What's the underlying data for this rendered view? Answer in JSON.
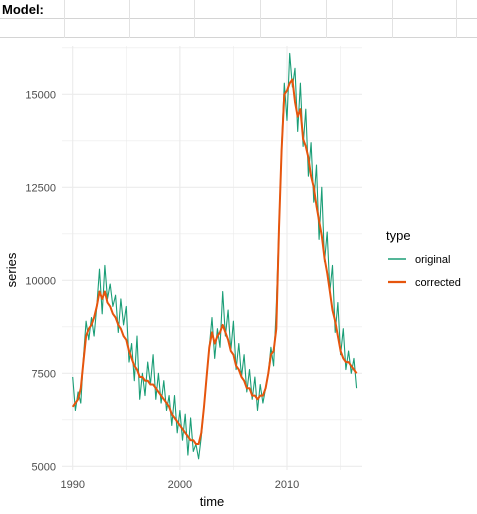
{
  "sheet": {
    "model_label": "Model:"
  },
  "colors": {
    "original": "#1b9e77",
    "corrected": "#e6550d",
    "grid": "#ebebeb"
  },
  "chart_data": {
    "type": "line",
    "title": "",
    "xlabel": "time",
    "ylabel": "series",
    "xlim": [
      1989,
      2017
    ],
    "ylim": [
      4900,
      16300
    ],
    "xticks": [
      1990,
      2000,
      2010
    ],
    "yticks": [
      5000,
      7500,
      10000,
      12500,
      15000
    ],
    "grid": true,
    "legend": {
      "title": "type",
      "placement": "right"
    },
    "x_start": 1990.0,
    "x_step": 0.25,
    "series": [
      {
        "name": "original",
        "values": [
          7400,
          6500,
          7000,
          6700,
          7900,
          8900,
          8400,
          9000,
          8500,
          9300,
          10300,
          9100,
          10400,
          9500,
          9900,
          9300,
          9600,
          8600,
          9500,
          8800,
          9300,
          7800,
          8300,
          7300,
          8500,
          6800,
          7500,
          6900,
          7800,
          7200,
          8000,
          6800,
          7500,
          6700,
          7300,
          6500,
          6900,
          6100,
          6900,
          5900,
          6500,
          5700,
          6400,
          5300,
          6300,
          5400,
          5600,
          5200,
          5800,
          6600,
          7400,
          8200,
          9000,
          7900,
          8700,
          8200,
          9700,
          8500,
          9200,
          8100,
          8900,
          7600,
          8300,
          7400,
          8000,
          7000,
          7600,
          6800,
          7400,
          6500,
          7200,
          6700,
          7100,
          7500,
          8200,
          7700,
          9300,
          11500,
          13600,
          15300,
          14300,
          16100,
          15200,
          15700,
          14000,
          15300,
          13600,
          14600,
          12800,
          13700,
          12100,
          13100,
          11100,
          12500,
          10500,
          11300,
          9700,
          10400,
          8600,
          9400,
          8000,
          8700,
          7600,
          8100,
          7500,
          7900,
          7100
        ]
      },
      {
        "name": "corrected",
        "values": [
          6600,
          6700,
          6800,
          7100,
          7800,
          8500,
          8700,
          8800,
          9000,
          9300,
          9700,
          9500,
          9700,
          9400,
          9300,
          9100,
          9000,
          8800,
          8700,
          8500,
          8400,
          8100,
          7900,
          7700,
          7600,
          7400,
          7400,
          7300,
          7300,
          7200,
          7200,
          7100,
          7000,
          6900,
          6800,
          6700,
          6600,
          6400,
          6300,
          6200,
          6100,
          6000,
          5900,
          5800,
          5700,
          5700,
          5600,
          5600,
          5900,
          6600,
          7400,
          8200,
          8600,
          8300,
          8500,
          8600,
          8800,
          8600,
          8400,
          8100,
          8000,
          7700,
          7600,
          7400,
          7300,
          7100,
          7100,
          6900,
          6900,
          6800,
          6900,
          6900,
          7100,
          7500,
          8000,
          8100,
          8700,
          11400,
          13500,
          15000,
          15100,
          15300,
          15400,
          14800,
          14400,
          14600,
          13800,
          13600,
          13300,
          12800,
          12500,
          12000,
          11600,
          11200,
          10600,
          10200,
          9700,
          9200,
          8900,
          8500,
          8100,
          7900,
          7800,
          7800,
          7700,
          7600,
          7500
        ]
      }
    ]
  }
}
